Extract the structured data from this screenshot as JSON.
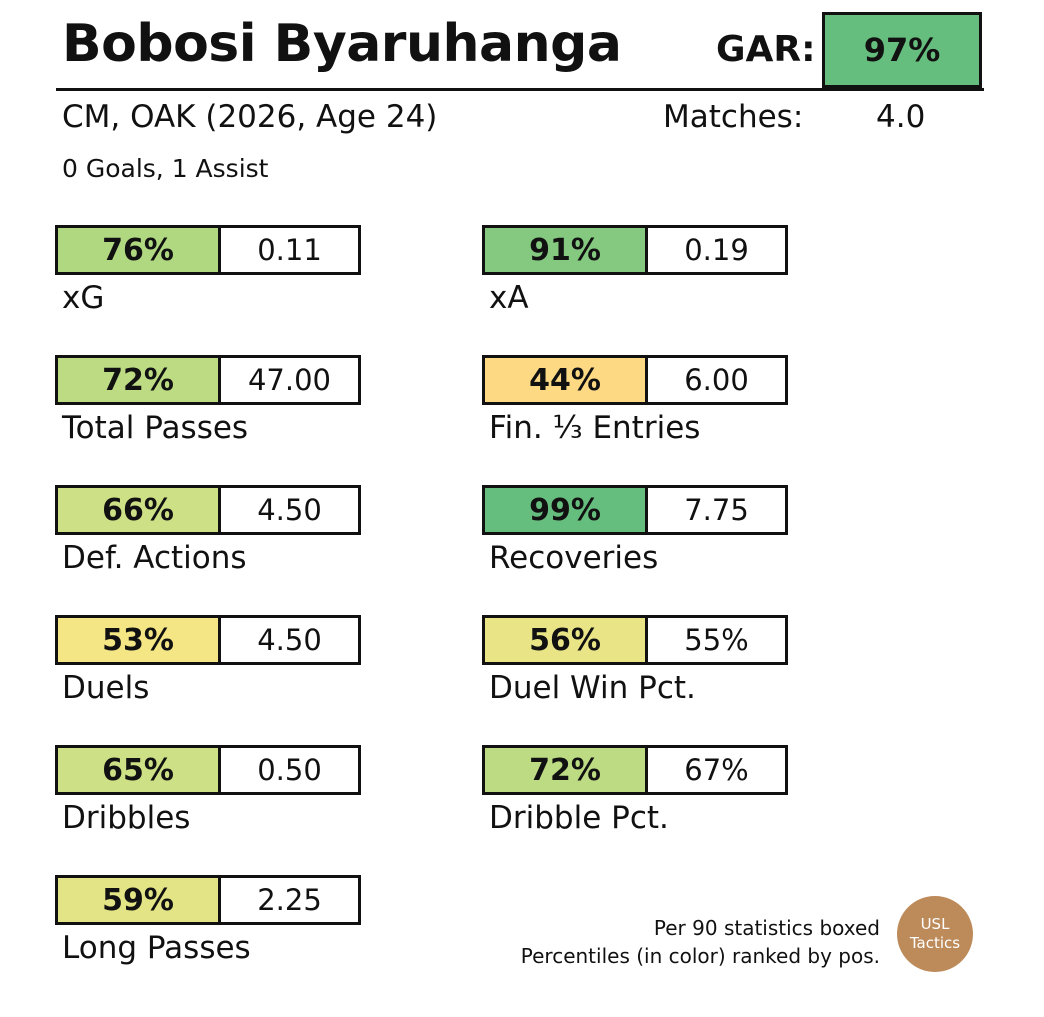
{
  "player": {
    "name": "Bobosi Byaruhanga",
    "position_line": "CM, OAK (2026, Age 24)",
    "goals_assists": "0 Goals,  1 Assist"
  },
  "gar": {
    "label": "GAR:",
    "value": "97%",
    "color": "#66be7e"
  },
  "matches": {
    "label": "Matches:",
    "value": "4.0"
  },
  "stats": [
    {
      "label": "xG",
      "percentile": "76%",
      "value": "0.11",
      "color": "#b0d881"
    },
    {
      "label": "xA",
      "percentile": "91%",
      "value": "0.19",
      "color": "#84c97f"
    },
    {
      "label": "Total Passes",
      "percentile": "72%",
      "value": "47.00",
      "color": "#bcdb83"
    },
    {
      "label": "Fin. ⅓ Entries",
      "percentile": "44%",
      "value": "6.00",
      "color": "#fdd983"
    },
    {
      "label": "Def. Actions",
      "percentile": "66%",
      "value": "4.50",
      "color": "#cde086"
    },
    {
      "label": "Recoveries",
      "percentile": "99%",
      "value": "7.75",
      "color": "#66be7e"
    },
    {
      "label": "Duels",
      "percentile": "53%",
      "value": "4.50",
      "color": "#f4e585"
    },
    {
      "label": "Duel Win Pct.",
      "percentile": "56%",
      "value": "55%",
      "color": "#e9e587"
    },
    {
      "label": "Dribbles",
      "percentile": "65%",
      "value": "0.50",
      "color": "#cde086"
    },
    {
      "label": "Dribble Pct.",
      "percentile": "72%",
      "value": "67%",
      "color": "#bcdb83"
    },
    {
      "label": "Long Passes",
      "percentile": "59%",
      "value": "2.25",
      "color": "#e3e486"
    }
  ],
  "footnote": {
    "line1": "Per 90 statistics boxed",
    "line2": "Percentiles (in color) ranked by pos."
  },
  "logo": {
    "line1": "USL",
    "line2": "Tactics",
    "color": "#bd8a5a"
  }
}
